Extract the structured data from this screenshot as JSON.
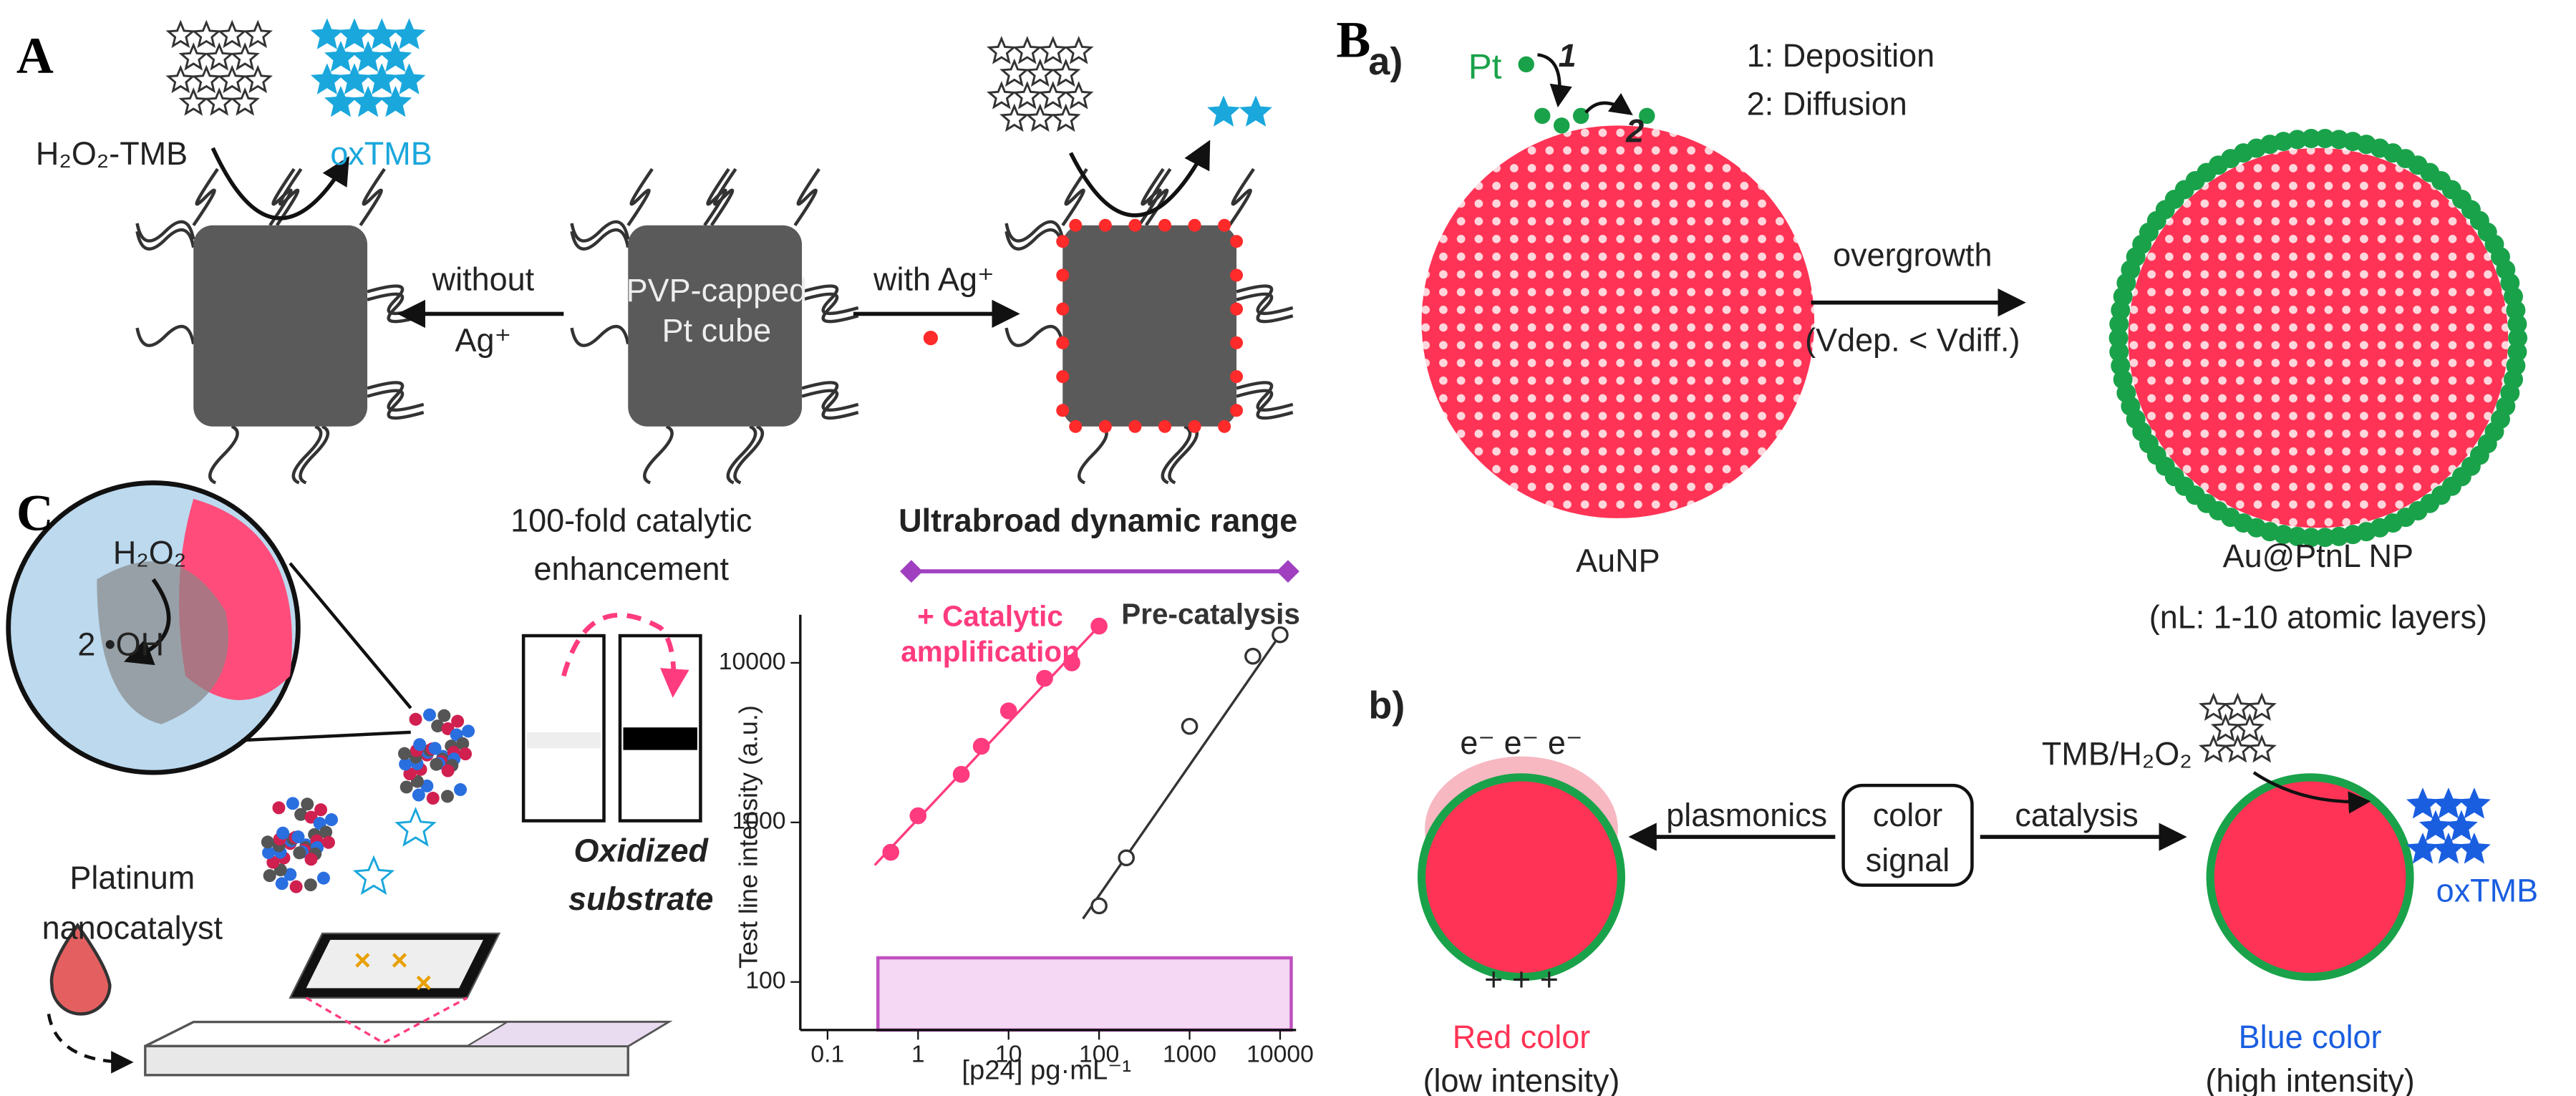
{
  "panel_a": {
    "label": "A",
    "reactant": "H₂O₂-TMB",
    "product": "oxTMB",
    "without": "without",
    "ag_left": "Ag⁺",
    "center_1": "PVP-capped",
    "center_2": "Pt cube",
    "with": "with Ag⁺"
  },
  "panel_b": {
    "label": "B",
    "part_a": "a)",
    "pt": "Pt",
    "step_1": "1",
    "step_2": "2",
    "legend_1": "1: Deposition",
    "legend_2": "2: Diffusion",
    "core": "AuNP",
    "arrow_top": "overgrowth",
    "arrow_bottom": "(Vdep. < Vdiff.)",
    "product": "Au@PtnL NP",
    "product_note": "(nL: 1-10 atomic layers)",
    "part_b": "b)",
    "electrons": "e⁻ e⁻ e⁻",
    "charges": "+ + +",
    "plasmonics": "plasmonics",
    "catalysis": "catalysis",
    "signal_1": "color",
    "signal_2": "signal",
    "substrate": "TMB/H₂O₂",
    "oxidized": "oxTMB",
    "red_1": "Red color",
    "red_2": "(low intensity)",
    "blue_1": "Blue color",
    "blue_2": "(high intensity)"
  },
  "panel_c": {
    "label": "C",
    "h2o2": "H₂O₂",
    "oh": "2 •OH",
    "catalyst_1": "Platinum",
    "catalyst_2": "nanocatalyst",
    "enh_1": "100-fold catalytic",
    "enh_2": "enhancement",
    "sub_1": "Oxidized",
    "sub_2": "substrate"
  },
  "chart_data": {
    "type": "scatter",
    "title": "Ultrabroad dynamic range",
    "xlabel": "[p24] pg·mL⁻¹",
    "ylabel": "Test line intensity (a.u.)",
    "log_x": true,
    "log_y": true,
    "xlim": [
      0.05,
      15000
    ],
    "ylim": [
      50,
      20000
    ],
    "xticks": [
      0.1,
      1,
      10,
      100,
      1000,
      10000
    ],
    "yticks": [
      100,
      1000,
      10000
    ],
    "series": [
      {
        "name": "+ Catalytic amplification",
        "color": "#ff3b7f",
        "x": [
          0.5,
          1,
          3,
          5,
          10,
          25,
          50,
          100
        ],
        "values": [
          650,
          1100,
          2000,
          3000,
          5000,
          8000,
          10000,
          17000
        ]
      },
      {
        "name": "Pre-catalysis",
        "color": "#333333",
        "x": [
          100,
          200,
          1000,
          5000,
          10000
        ],
        "values": [
          300,
          600,
          4000,
          11000,
          15000
        ]
      }
    ]
  }
}
